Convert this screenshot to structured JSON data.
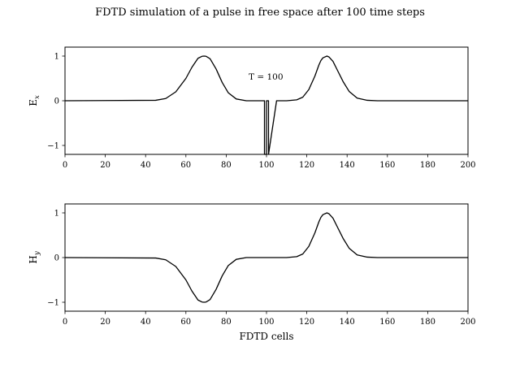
{
  "figure": {
    "title": "FDTD simulation of a pulse in free space after 100 time steps"
  },
  "chart_data": [
    {
      "type": "line",
      "id": "ex",
      "title": "",
      "xlabel": "",
      "ylabel": "E",
      "ylabel_sub": "x",
      "xlim": [
        0,
        200
      ],
      "ylim": [
        -1.2,
        1.2
      ],
      "xticks": [
        0,
        20,
        40,
        60,
        80,
        100,
        120,
        140,
        160,
        180,
        200
      ],
      "yticks": [
        1,
        0,
        -1
      ],
      "ytick_labels": [
        "1",
        "0",
        "−1"
      ],
      "annotation": "T = 100",
      "annotation_at": [
        100,
        0.55
      ],
      "legend": "none",
      "grid": false,
      "series": [
        {
          "x": [
            0,
            45,
            50,
            55,
            60,
            63,
            66,
            68,
            69,
            70,
            72,
            75,
            78,
            81,
            85,
            90,
            95,
            99,
            99,
            100,
            100,
            101,
            101,
            105,
            110,
            115,
            118,
            121,
            124,
            126,
            127,
            128,
            130,
            131,
            133,
            135,
            138,
            141,
            145,
            150,
            155,
            200
          ],
          "y": [
            0,
            0.01,
            0.05,
            0.2,
            0.5,
            0.75,
            0.95,
            0.995,
            1.0,
            0.995,
            0.94,
            0.71,
            0.41,
            0.18,
            0.04,
            0.0,
            0.0,
            0.0,
            -1.2,
            -1.2,
            0.0,
            0.0,
            -1.2,
            0.0,
            0.0,
            0.02,
            0.08,
            0.25,
            0.55,
            0.8,
            0.9,
            0.96,
            1.0,
            0.98,
            0.88,
            0.7,
            0.43,
            0.21,
            0.06,
            0.01,
            0,
            0
          ]
        }
      ]
    },
    {
      "type": "line",
      "id": "hy",
      "title": "",
      "xlabel": "FDTD cells",
      "ylabel": "H",
      "ylabel_sub": "y",
      "xlim": [
        0,
        200
      ],
      "ylim": [
        -1.2,
        1.2
      ],
      "xticks": [
        0,
        20,
        40,
        60,
        80,
        100,
        120,
        140,
        160,
        180,
        200
      ],
      "yticks": [
        1,
        0,
        -1
      ],
      "ytick_labels": [
        "1",
        "0",
        "−1"
      ],
      "legend": "none",
      "grid": false,
      "series": [
        {
          "x": [
            0,
            45,
            50,
            55,
            60,
            63,
            66,
            68,
            69,
            70,
            72,
            75,
            78,
            81,
            85,
            90,
            95,
            100,
            105,
            110,
            115,
            118,
            121,
            124,
            126,
            127,
            128,
            130,
            131,
            133,
            135,
            138,
            141,
            145,
            150,
            155,
            200
          ],
          "y": [
            0,
            -0.01,
            -0.05,
            -0.2,
            -0.5,
            -0.75,
            -0.95,
            -0.995,
            -1.0,
            -0.995,
            -0.94,
            -0.71,
            -0.41,
            -0.18,
            -0.04,
            0,
            0,
            0,
            0,
            0,
            0.02,
            0.08,
            0.25,
            0.55,
            0.8,
            0.9,
            0.96,
            1.0,
            0.98,
            0.88,
            0.7,
            0.43,
            0.21,
            0.06,
            0.01,
            0,
            0
          ]
        }
      ]
    }
  ]
}
